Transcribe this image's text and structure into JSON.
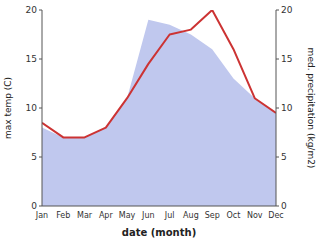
{
  "chart_data": {
    "type": "line",
    "categories": [
      "Jan",
      "Feb",
      "Mar",
      "Apr",
      "May",
      "Jun",
      "Jul",
      "Aug",
      "Sep",
      "Oct",
      "Nov",
      "Dec"
    ],
    "xlabel": "date (month)",
    "ylabel": "max temp (C)",
    "y2label": "med. precipitation (kg/m2)",
    "series": [
      {
        "type": "line",
        "color": "#cc3333",
        "values": [
          8.5,
          7.0,
          7.0,
          8.0,
          11.0,
          14.5,
          17.5,
          18.0,
          20.0,
          16.0,
          11.0,
          9.5
        ]
      },
      {
        "type": "area",
        "color": "#c0c8ee",
        "axis": "y2",
        "values": [
          8.0,
          7.0,
          7.0,
          8.0,
          11.0,
          19.0,
          18.5,
          17.5,
          16.0,
          13.0,
          11.0,
          9.5
        ]
      }
    ],
    "ylim": [
      0,
      20
    ],
    "yticks": [
      0,
      5,
      10,
      15,
      20
    ],
    "y2lim": [
      0,
      20
    ],
    "y2ticks": [
      0,
      5,
      10,
      15,
      20
    ]
  }
}
